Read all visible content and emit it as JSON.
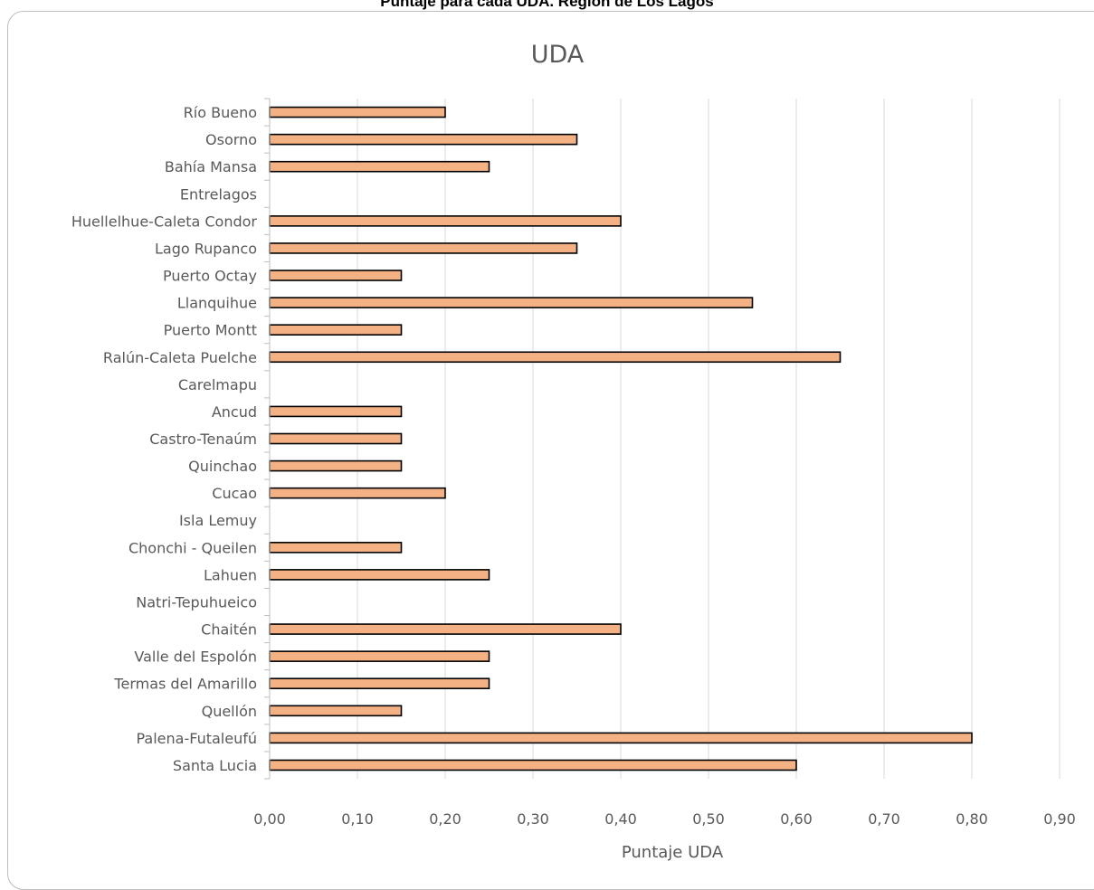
{
  "heading": "Puntaje para cada UDA. Región de Los Lagos",
  "chart_data": {
    "type": "bar",
    "orientation": "horizontal",
    "title": "UDA",
    "xlabel": "Puntaje UDA",
    "ylabel": "",
    "xlim": [
      0,
      0.9
    ],
    "x_ticks": [
      "0,00",
      "0,10",
      "0,20",
      "0,30",
      "0,40",
      "0,50",
      "0,60",
      "0,70",
      "0,80",
      "0,90"
    ],
    "grid": "vertical",
    "legend": "none",
    "bar_color": "#F4B183",
    "bar_edge_color": "#000000",
    "categories": [
      "Río Bueno",
      "Osorno",
      "Bahía Mansa",
      "Entrelagos",
      "Huellelhue-Caleta Condor",
      "Lago Rupanco",
      "Puerto Octay",
      "Llanquihue",
      "Puerto Montt",
      "Ralún-Caleta Puelche",
      "Carelmapu",
      "Ancud",
      "Castro-Tenaúm",
      "Quinchao",
      "Cucao",
      "Isla Lemuy",
      "Chonchi - Queilen",
      "Lahuen",
      "Natri-Tepuhueico",
      "Chaitén",
      "Valle del Espolón",
      "Termas del Amarillo",
      "Quellón",
      "Palena-Futaleufú",
      "Santa Lucia"
    ],
    "values": [
      0.2,
      0.35,
      0.25,
      0.0,
      0.4,
      0.35,
      0.15,
      0.55,
      0.15,
      0.65,
      0.0,
      0.15,
      0.15,
      0.15,
      0.2,
      0.0,
      0.15,
      0.25,
      0.0,
      0.4,
      0.25,
      0.25,
      0.15,
      0.8,
      0.6
    ]
  }
}
